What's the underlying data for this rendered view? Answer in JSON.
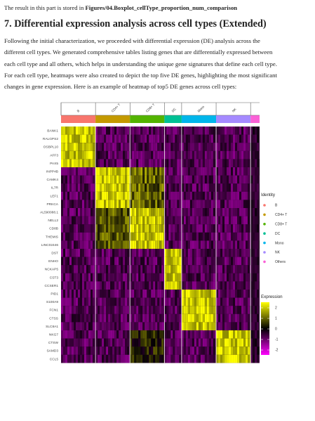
{
  "doc": {
    "top_prefix": "The result in this part is stored in ",
    "top_path": "Figures/04.Boxplot_cellType_proportion_num_comparison",
    "heading": "7. Differential expression analysis across cell types (Extended)",
    "para_lines": [
      "Following the initial characterization, we proceeded with differential expression (DE) analysis across the",
      "different cell types. We generated comprehensive tables listing genes that are differentially expressed between",
      "each cell type and all others, which helps in understanding the unique gene signatures that define each cell type.",
      "For each cell type, heatmaps were also created to depict the top five DE genes, highlighting the most significant",
      "changes in gene expression. Here is an example of heatmap of top5 DE genes across cell types:"
    ]
  },
  "chart_data": {
    "type": "heatmap",
    "identity_title": "Identity",
    "expression_title": "Expression",
    "cell_types": [
      {
        "name": "B",
        "color": "#f8766d"
      },
      {
        "name": "CD4+ T",
        "color": "#c49a00"
      },
      {
        "name": "CD8+ T",
        "color": "#53b400"
      },
      {
        "name": "DC",
        "color": "#00c094"
      },
      {
        "name": "Mono",
        "color": "#00b6eb"
      },
      {
        "name": "NK",
        "color": "#a58aff"
      },
      {
        "name": "Others",
        "color": "#fb61d7"
      }
    ],
    "genes": [
      "BANK1",
      "RALGPS2",
      "OSBPL10",
      "AFF3",
      "PAX5",
      "INPP4B",
      "CAMK4",
      "IL7R",
      "LEF1",
      "PRKCA",
      "AL590088.1",
      "NELL2",
      "CD8B",
      "THEMIS",
      "LINC02446",
      "DST",
      "ENHO",
      "NCKAP5",
      "CST3",
      "CCSER1",
      "PID1",
      "S100A9",
      "FCN1",
      "CTSS",
      "SLC8A1",
      "NKG7",
      "CTSW",
      "SAMD3",
      "CCL5"
    ],
    "color_scale": {
      "low": "#ff00ff",
      "mid": "#000000",
      "high": "#ffff00"
    },
    "scale_ticks": [
      2,
      1,
      0,
      -1,
      -2
    ]
  }
}
